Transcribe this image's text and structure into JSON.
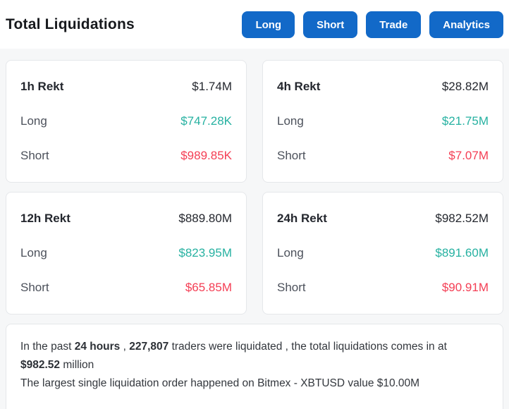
{
  "header": {
    "title": "Total Liquidations",
    "buttons": [
      {
        "label": "Long"
      },
      {
        "label": "Short"
      },
      {
        "label": "Trade"
      },
      {
        "label": "Analytics"
      }
    ]
  },
  "cards": [
    {
      "title": "1h Rekt",
      "total": "$1.74M",
      "long_label": "Long",
      "long_value": "$747.28K",
      "short_label": "Short",
      "short_value": "$989.85K"
    },
    {
      "title": "4h Rekt",
      "total": "$28.82M",
      "long_label": "Long",
      "long_value": "$21.75M",
      "short_label": "Short",
      "short_value": "$7.07M"
    },
    {
      "title": "12h Rekt",
      "total": "$889.80M",
      "long_label": "Long",
      "long_value": "$823.95M",
      "short_label": "Short",
      "short_value": "$65.85M"
    },
    {
      "title": "24h Rekt",
      "total": "$982.52M",
      "long_label": "Long",
      "long_value": "$891.60M",
      "short_label": "Short",
      "short_value": "$90.91M"
    }
  ],
  "summary": {
    "lines": [
      [
        {
          "text": "In the past ",
          "bold": false
        },
        {
          "text": "24 hours",
          "bold": true
        },
        {
          "text": " , ",
          "bold": false
        },
        {
          "text": "227,807",
          "bold": true
        },
        {
          "text": " traders were liquidated , the total liquidations comes in at ",
          "bold": false
        },
        {
          "text": "$982.52",
          "bold": true
        },
        {
          "text": " million",
          "bold": false
        }
      ],
      [
        {
          "text": "The largest single liquidation order happened on Bitmex - XBTUSD value $10.00M",
          "bold": false
        }
      ]
    ]
  },
  "colors": {
    "accent_blue": "#1269c8",
    "long_green": "#26b1a1",
    "short_red": "#f43e54",
    "card_border": "#e5e7ea",
    "page_bg": "#f6f7f8"
  }
}
